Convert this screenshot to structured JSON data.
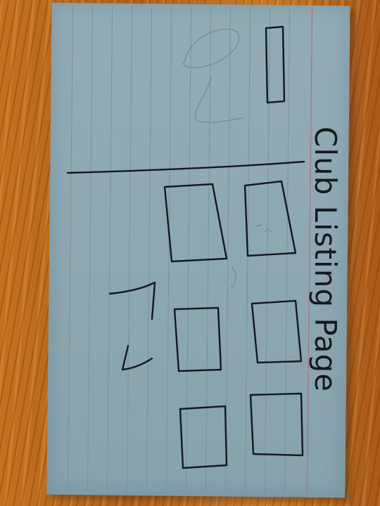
{
  "card": {
    "title": "Club Listing Page"
  },
  "colors": {
    "card_blue": "#8ea8b3",
    "ink": "#15181c",
    "wood": "#b5651d",
    "margin_line": "#b5646a"
  }
}
